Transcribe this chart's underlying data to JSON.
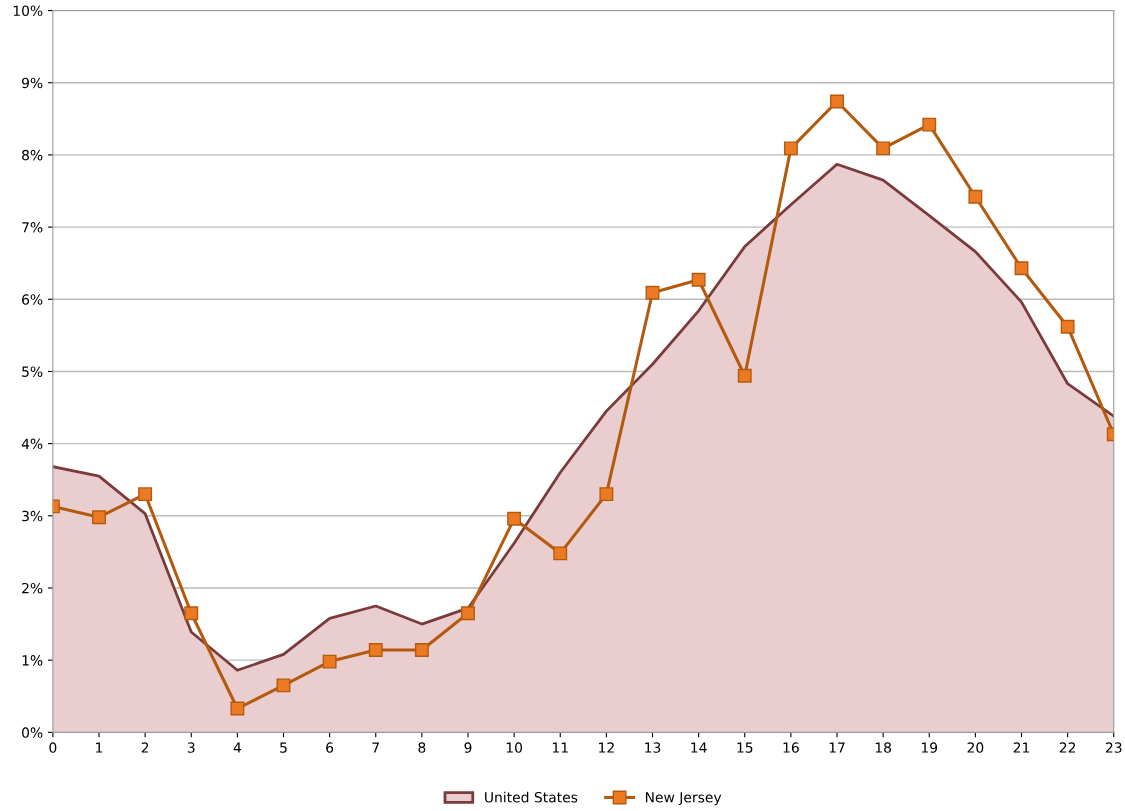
{
  "chart_data": {
    "type": "line",
    "categories": [
      "0",
      "1",
      "2",
      "3",
      "4",
      "5",
      "6",
      "7",
      "8",
      "9",
      "10",
      "11",
      "12",
      "13",
      "14",
      "15",
      "16",
      "17",
      "18",
      "19",
      "20",
      "21",
      "22",
      "23"
    ],
    "series": [
      {
        "name": "United States",
        "type": "area",
        "color": "#7a3b3b",
        "values": [
          3.68,
          3.55,
          3.03,
          1.39,
          0.86,
          1.08,
          1.58,
          1.75,
          1.5,
          1.72,
          2.62,
          3.6,
          4.45,
          5.1,
          5.84,
          6.73,
          7.31,
          7.87,
          7.65,
          7.16,
          6.66,
          5.96,
          4.83,
          4.38
        ]
      },
      {
        "name": "New Jersey",
        "type": "line",
        "color": "#b35a0f",
        "marker": "square",
        "values": [
          3.13,
          2.98,
          3.3,
          1.65,
          0.33,
          0.65,
          0.98,
          1.14,
          1.14,
          1.65,
          2.96,
          2.48,
          3.3,
          6.09,
          6.27,
          4.94,
          8.09,
          8.74,
          8.09,
          8.42,
          7.42,
          6.43,
          5.62,
          4.13
        ]
      }
    ],
    "ylim": [
      0,
      10
    ],
    "yticks": [
      {
        "value": 0,
        "label": "0%"
      },
      {
        "value": 1,
        "label": "1%"
      },
      {
        "value": 2,
        "label": "2%"
      },
      {
        "value": 3,
        "label": "3%"
      },
      {
        "value": 4,
        "label": "4%"
      },
      {
        "value": 5,
        "label": "5%"
      },
      {
        "value": 6,
        "label": "6%"
      },
      {
        "value": 7,
        "label": "7%"
      },
      {
        "value": 8,
        "label": "8%"
      },
      {
        "value": 9,
        "label": "9%"
      },
      {
        "value": 10,
        "label": "10%"
      }
    ],
    "grid": "y",
    "legend": "bottom",
    "line_style": "solid"
  }
}
